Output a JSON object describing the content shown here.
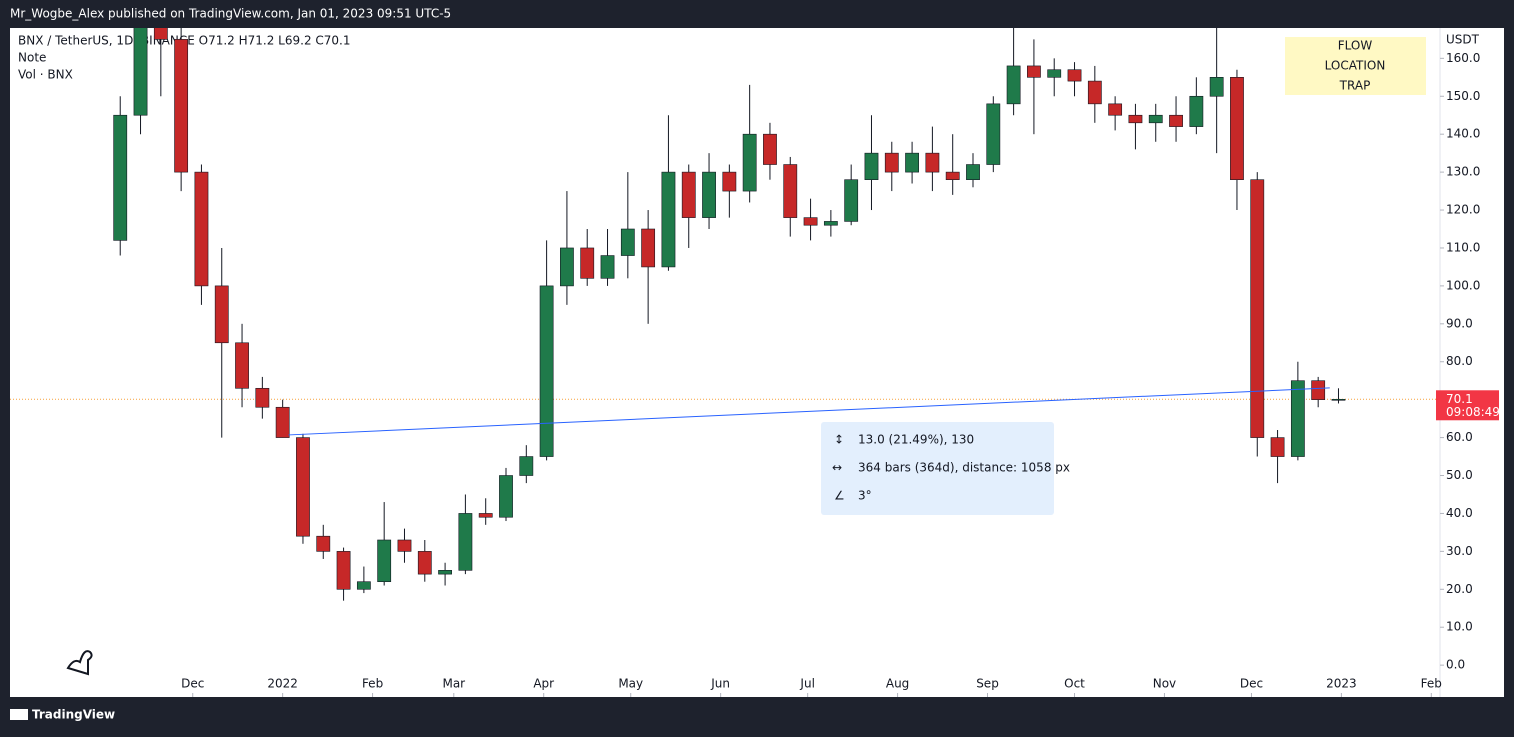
{
  "chart_data": {
    "type": "candlestick",
    "publisher_line": "Mr_Wogbe_Alex published on TradingView.com, Jan 01, 2023 09:51 UTC-5",
    "symbol_line": "BNX / TetherUS, 1D, BINANCE  O71.2  H71.2  L69.2  C70.1",
    "note": "Note",
    "volume_label": "Vol · BNX",
    "currency": "USDT",
    "brand": "TradingView",
    "up_color": "#1f7a4a",
    "down_color": "#c62828",
    "x": [
      -56,
      -49,
      -42,
      -35,
      -28,
      -21,
      -14,
      -7,
      0,
      7,
      14,
      21,
      28,
      35,
      42,
      49,
      56,
      63,
      70,
      77,
      84,
      91,
      98,
      105,
      112,
      119,
      126,
      133,
      140,
      147,
      154,
      161,
      168,
      175,
      182,
      189,
      196,
      203,
      210,
      217,
      224,
      231,
      238,
      245,
      252,
      259,
      266,
      273,
      280,
      287,
      294,
      301,
      308,
      315,
      322,
      329,
      336,
      343,
      350,
      357,
      364
    ],
    "open": [
      112,
      145,
      170,
      165,
      130,
      100,
      85,
      73,
      68,
      60,
      34,
      30,
      20,
      22,
      33,
      30,
      24,
      25,
      40,
      39,
      50,
      55,
      100,
      110,
      102,
      108,
      115,
      105,
      130,
      118,
      130,
      125,
      140,
      132,
      118,
      116,
      117,
      128,
      135,
      130,
      135,
      130,
      128,
      132,
      148,
      158,
      155,
      157,
      154,
      148,
      145,
      143,
      145,
      142,
      150,
      155,
      128,
      60,
      55,
      75,
      70
    ],
    "high": [
      150,
      175,
      180,
      170,
      132,
      110,
      90,
      76,
      70,
      61,
      37,
      31,
      26,
      43,
      36,
      33,
      27,
      45,
      44,
      52,
      58,
      112,
      125,
      115,
      115,
      130,
      120,
      145,
      132,
      135,
      132,
      153,
      143,
      134,
      123,
      120,
      132,
      145,
      138,
      138,
      142,
      140,
      135,
      150,
      168,
      165,
      160,
      159,
      158,
      150,
      148,
      148,
      150,
      155,
      172,
      157,
      130,
      62,
      80,
      76,
      73
    ],
    "low": [
      108,
      140,
      150,
      125,
      95,
      60,
      68,
      65,
      60,
      32,
      28,
      17,
      19,
      21,
      27,
      22,
      21,
      24,
      37,
      38,
      48,
      54,
      95,
      100,
      100,
      102,
      90,
      104,
      110,
      115,
      118,
      122,
      128,
      113,
      112,
      113,
      116,
      120,
      125,
      127,
      125,
      124,
      126,
      130,
      145,
      140,
      150,
      150,
      143,
      141,
      136,
      138,
      138,
      140,
      135,
      120,
      55,
      48,
      54,
      68,
      69
    ],
    "close": [
      145,
      170,
      165,
      130,
      100,
      85,
      73,
      68,
      60,
      34,
      30,
      20,
      22,
      33,
      30,
      24,
      25,
      40,
      39,
      50,
      55,
      100,
      110,
      102,
      108,
      115,
      105,
      130,
      118,
      130,
      125,
      140,
      132,
      118,
      116,
      117,
      128,
      135,
      130,
      135,
      130,
      128,
      132,
      148,
      158,
      155,
      157,
      154,
      148,
      145,
      143,
      145,
      142,
      150,
      155,
      128,
      60,
      55,
      75,
      70,
      70.1
    ],
    "xlim": [
      -94,
      399
    ],
    "ylim": [
      -8.4,
      168
    ],
    "yticks": [
      {
        "value": 0,
        "label": "0.0"
      },
      {
        "value": 10,
        "label": "10.0"
      },
      {
        "value": 20,
        "label": "20.0"
      },
      {
        "value": 30,
        "label": "30.0"
      },
      {
        "value": 40,
        "label": "40.0"
      },
      {
        "value": 50,
        "label": "50.0"
      },
      {
        "value": 60,
        "label": "60.0"
      },
      {
        "value": 70,
        "label": "70.0"
      },
      {
        "value": 80,
        "label": "80.0"
      },
      {
        "value": 90,
        "label": "90.0"
      },
      {
        "value": 100,
        "label": "100.0"
      },
      {
        "value": 110,
        "label": "110.0"
      },
      {
        "value": 120,
        "label": "120.0"
      },
      {
        "value": 130,
        "label": "130.0"
      },
      {
        "value": 140,
        "label": "140.0"
      },
      {
        "value": 150,
        "label": "150.0"
      },
      {
        "value": 160,
        "label": "160.0"
      }
    ],
    "xticks": [
      {
        "value": -31,
        "label": "Dec"
      },
      {
        "value": 0,
        "label": "2022"
      },
      {
        "value": 31,
        "label": "Feb"
      },
      {
        "value": 59,
        "label": "Mar"
      },
      {
        "value": 90,
        "label": "Apr"
      },
      {
        "value": 120,
        "label": "May"
      },
      {
        "value": 151,
        "label": "Jun"
      },
      {
        "value": 181,
        "label": "Jul"
      },
      {
        "value": 212,
        "label": "Aug"
      },
      {
        "value": 243,
        "label": "Sep"
      },
      {
        "value": 273,
        "label": "Oct"
      },
      {
        "value": 304,
        "label": "Nov"
      },
      {
        "value": 334,
        "label": "Dec"
      },
      {
        "value": 365,
        "label": "2023"
      },
      {
        "value": 396,
        "label": "Feb"
      }
    ],
    "last_price": 70.1,
    "countdown": "09:08:49",
    "trendline": {
      "x": [
        2,
        361
      ],
      "y": [
        60.7,
        73.1
      ]
    },
    "measure": {
      "price_change": "13.0 (21.49%), 130",
      "range": "364 bars (364d), distance: 1058 px",
      "angle": "3°"
    },
    "labels": [
      "FLOW",
      "LOCATION",
      "TRAP"
    ]
  }
}
